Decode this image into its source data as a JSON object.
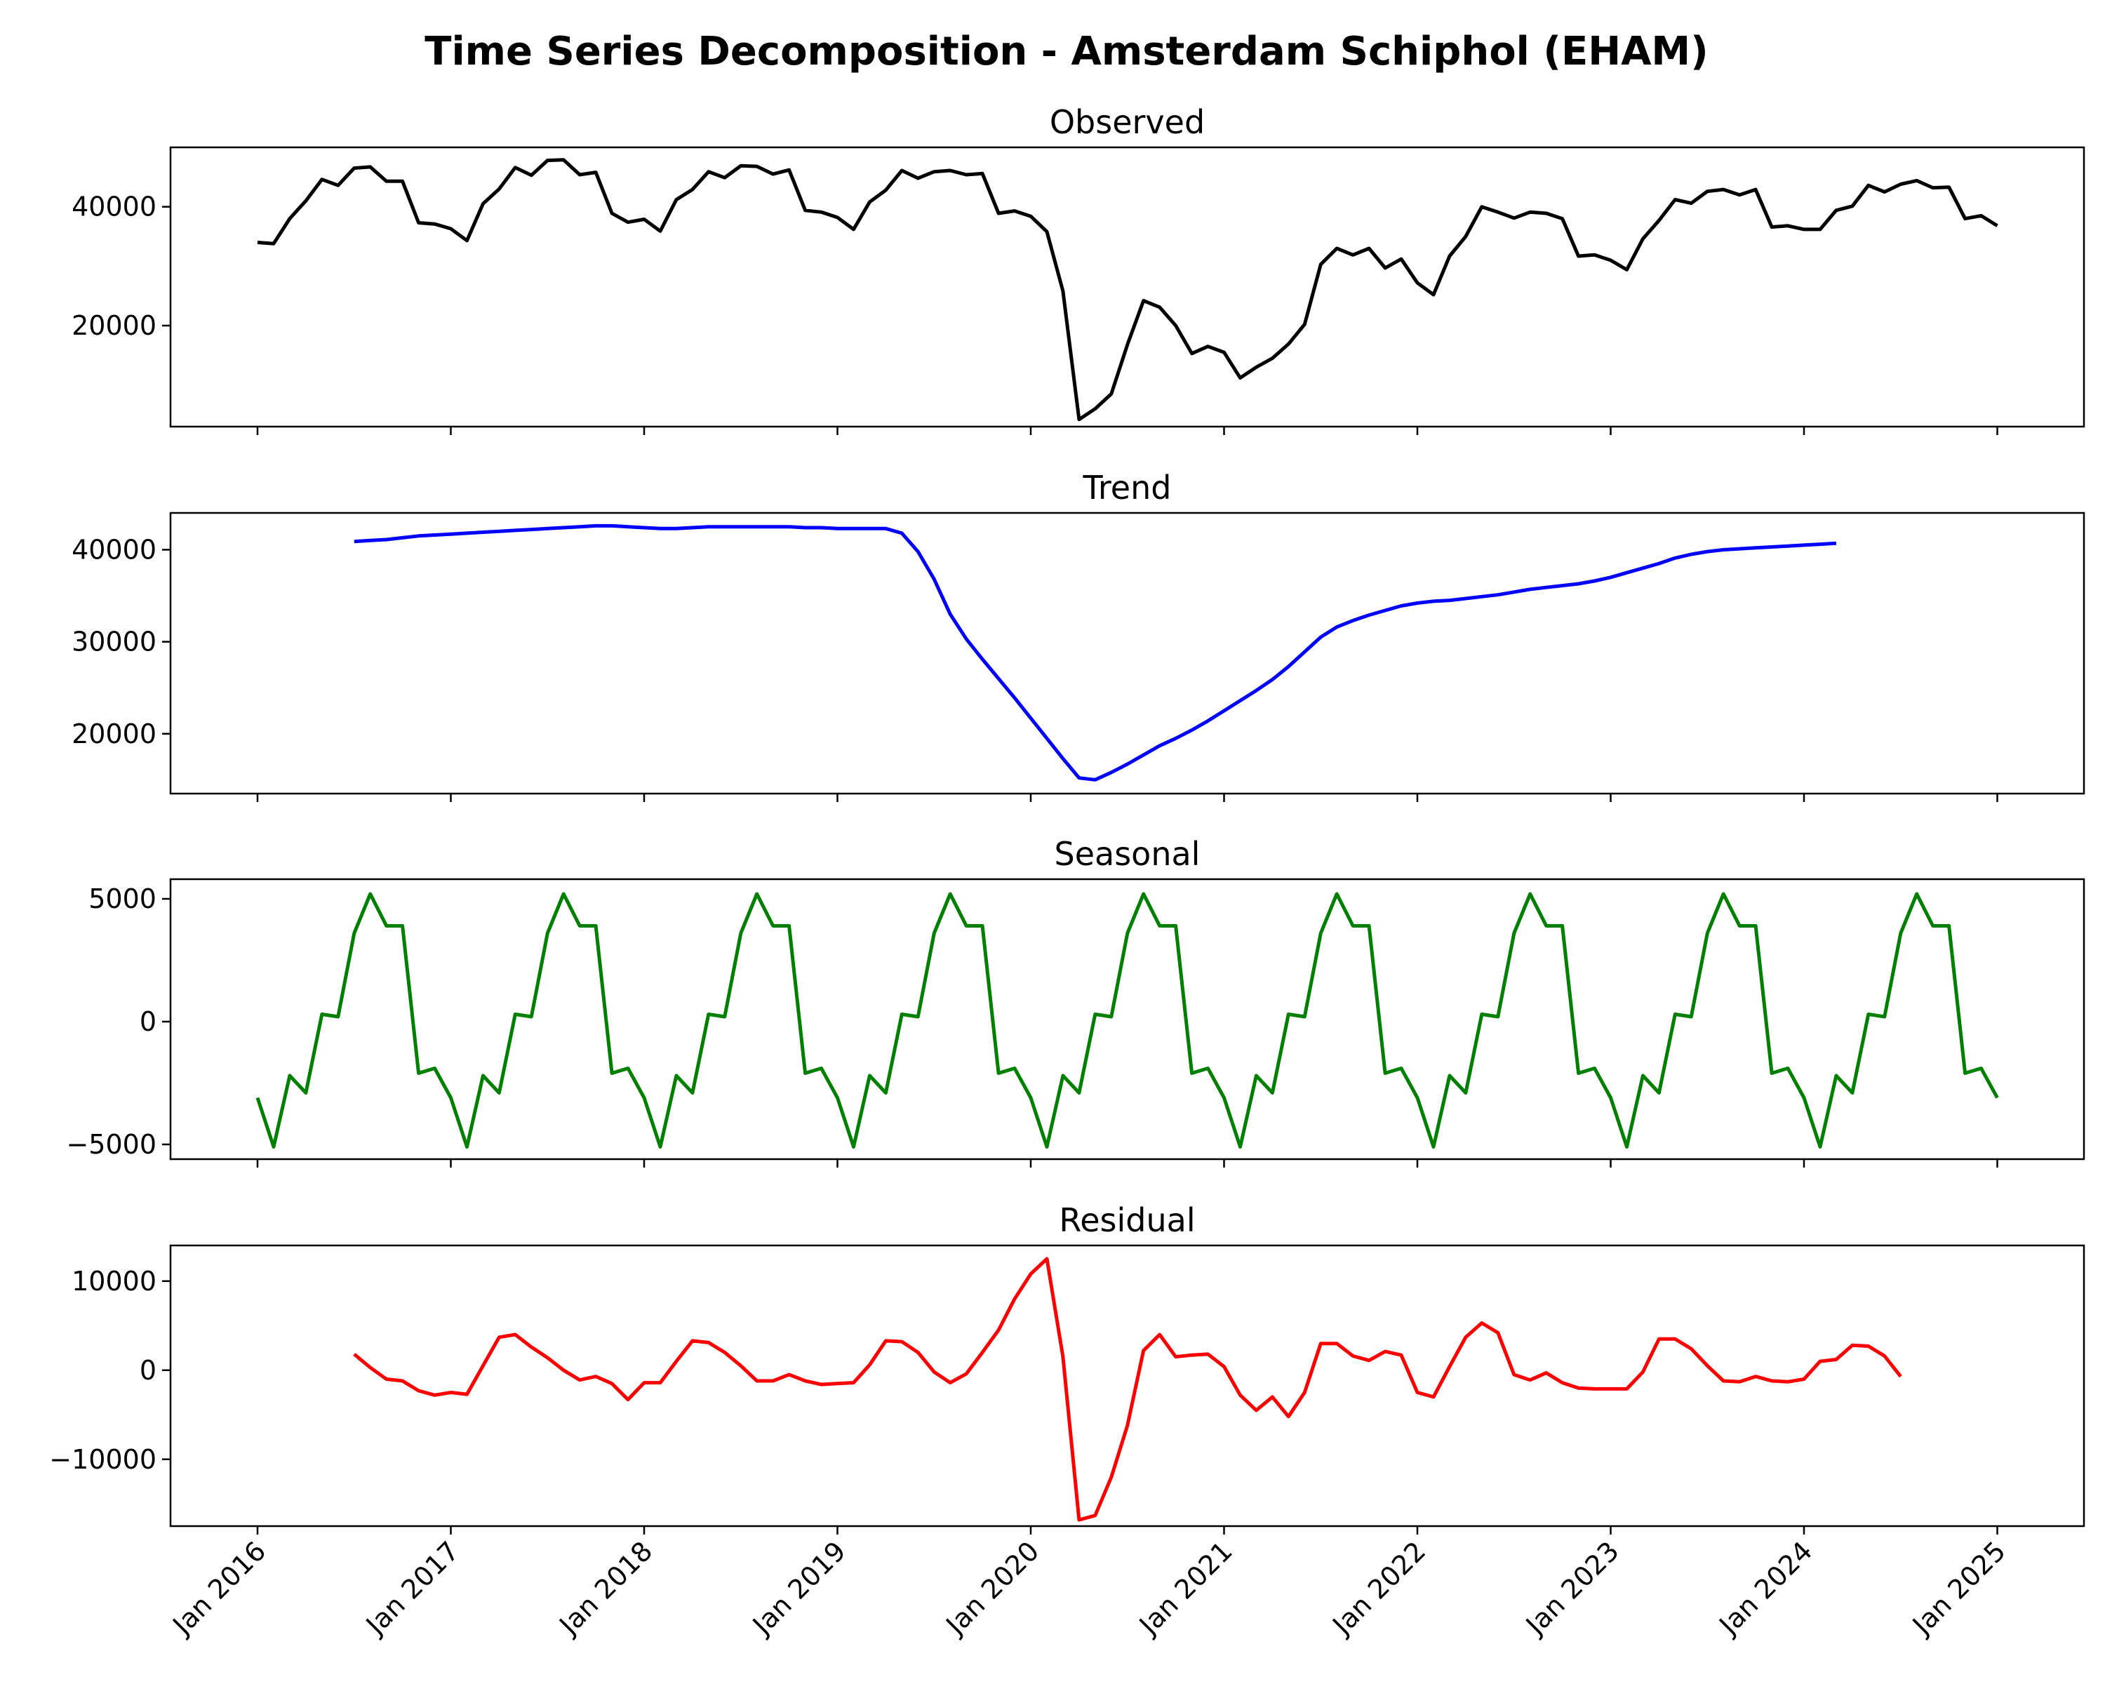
{
  "title": "Time Series Decomposition - Amsterdam Schiphol (EHAM)",
  "chart_data": {
    "type": "line",
    "title": "Time Series Decomposition - Amsterdam Schiphol (EHAM)",
    "x_start": "2016-01",
    "x_end": "2025-01",
    "x_frequency": "monthly",
    "x_tick_labels": [
      "Jan 2016",
      "Jan 2017",
      "Jan 2018",
      "Jan 2019",
      "Jan 2020",
      "Jan 2021",
      "Jan 2022",
      "Jan 2023",
      "Jan 2024",
      "Jan 2025"
    ],
    "grid": false,
    "panels": [
      {
        "title": "Observed",
        "color": "#000000",
        "ylim": [
          3000,
          50000
        ],
        "yticks": [
          20000,
          40000
        ],
        "ytick_labels": [
          "20000",
          "40000"
        ],
        "start": "2016-01",
        "values": [
          34000,
          33800,
          38000,
          41000,
          44600,
          43600,
          46500,
          46700,
          44300,
          44300,
          37300,
          37100,
          36300,
          34300,
          40500,
          43000,
          46600,
          45300,
          47800,
          47900,
          45400,
          45800,
          38900,
          37400,
          37900,
          35900,
          41200,
          42900,
          45900,
          44900,
          46900,
          46800,
          45500,
          46200,
          39400,
          39100,
          38200,
          36200,
          40800,
          42800,
          46100,
          44800,
          45900,
          46100,
          45400,
          45600,
          38900,
          39300,
          38400,
          35800,
          25800,
          4200,
          6000,
          8500,
          16800,
          24200,
          23100,
          20000,
          15300,
          16500,
          15500,
          11200,
          13000,
          14500,
          16900,
          20200,
          30300,
          33000,
          31900,
          33000,
          29700,
          31200,
          27200,
          25200,
          31700,
          35000,
          40000,
          39100,
          38100,
          39100,
          38900,
          38000,
          31700,
          31900,
          31000,
          29400,
          34600,
          37700,
          41200,
          40600,
          42600,
          42900,
          42000,
          42900,
          36600,
          36800,
          36200,
          36200,
          39400,
          40100,
          43600,
          42500,
          43800,
          44400,
          43200,
          43300,
          38000,
          38500,
          36800
        ]
      },
      {
        "title": "Trend",
        "color": "#0000ff",
        "ylim": [
          13500,
          44000
        ],
        "yticks": [
          20000,
          30000,
          40000
        ],
        "ytick_labels": [
          "20000",
          "30000",
          "40000"
        ],
        "start": "2016-07",
        "values": [
          40900,
          41000,
          41100,
          41300,
          41500,
          41600,
          41700,
          41800,
          41900,
          42000,
          42100,
          42200,
          42300,
          42400,
          42500,
          42600,
          42600,
          42500,
          42400,
          42300,
          42300,
          42400,
          42500,
          42500,
          42500,
          42500,
          42500,
          42500,
          42400,
          42400,
          42300,
          42300,
          42300,
          42300,
          41800,
          39800,
          36800,
          33000,
          30300,
          28100,
          26000,
          23900,
          21700,
          19500,
          17300,
          15200,
          15000,
          15800,
          16700,
          17700,
          18700,
          19500,
          20400,
          21400,
          22500,
          23600,
          24700,
          25900,
          27300,
          28900,
          30500,
          31600,
          32300,
          32900,
          33400,
          33900,
          34200,
          34400,
          34500,
          34700,
          34900,
          35100,
          35400,
          35700,
          35900,
          36100,
          36300,
          36600,
          37000,
          37500,
          38000,
          38500,
          39100,
          39500,
          39800,
          40000,
          40100,
          40200,
          40300,
          40400,
          40500,
          40600,
          40700
        ]
      },
      {
        "title": "Seasonal",
        "color": "#008000",
        "ylim": [
          -5600,
          5800
        ],
        "yticks": [
          -5000,
          0,
          5000
        ],
        "ytick_labels": [
          "−5000",
          "0",
          "5000"
        ],
        "start": "2016-01",
        "pattern": [
          -3100,
          -5100,
          -2200,
          -2900,
          300,
          200,
          3600,
          5200,
          3900,
          3900,
          -2100,
          -1900
        ],
        "values": []
      },
      {
        "title": "Residual",
        "color": "#ff0000",
        "ylim": [
          -17500,
          14000
        ],
        "yticks": [
          -10000,
          0,
          10000
        ],
        "ytick_labels": [
          "−10000",
          "0",
          "10000"
        ],
        "start": "2016-07",
        "values": [
          1800,
          300,
          -1000,
          -1200,
          -2300,
          -2800,
          -2500,
          -2700,
          500,
          3700,
          4000,
          2600,
          1400,
          0,
          -1100,
          -700,
          -1500,
          -3300,
          -1400,
          -1400,
          1000,
          3300,
          3100,
          2000,
          500,
          -1200,
          -1200,
          -500,
          -1200,
          -1600,
          -1500,
          -1400,
          600,
          3300,
          3200,
          2000,
          -200,
          -1400,
          -400,
          2000,
          4500,
          8000,
          10800,
          12500,
          1500,
          -16800,
          -16300,
          -12000,
          -6200,
          2200,
          4000,
          1500,
          1700,
          1800,
          400,
          -2800,
          -4500,
          -3000,
          -5200,
          -2500,
          3000,
          3000,
          1600,
          1100,
          2100,
          1700,
          -2500,
          -3000,
          400,
          3700,
          5300,
          4200,
          -500,
          -1100,
          -300,
          -1400,
          -2000,
          -2100,
          -2100,
          -2100,
          -200,
          3500,
          3500,
          2400,
          500,
          -1200,
          -1300,
          -700,
          -1200,
          -1300,
          -1000,
          1000,
          1200,
          2800,
          2700,
          1600,
          -700
        ]
      }
    ]
  }
}
